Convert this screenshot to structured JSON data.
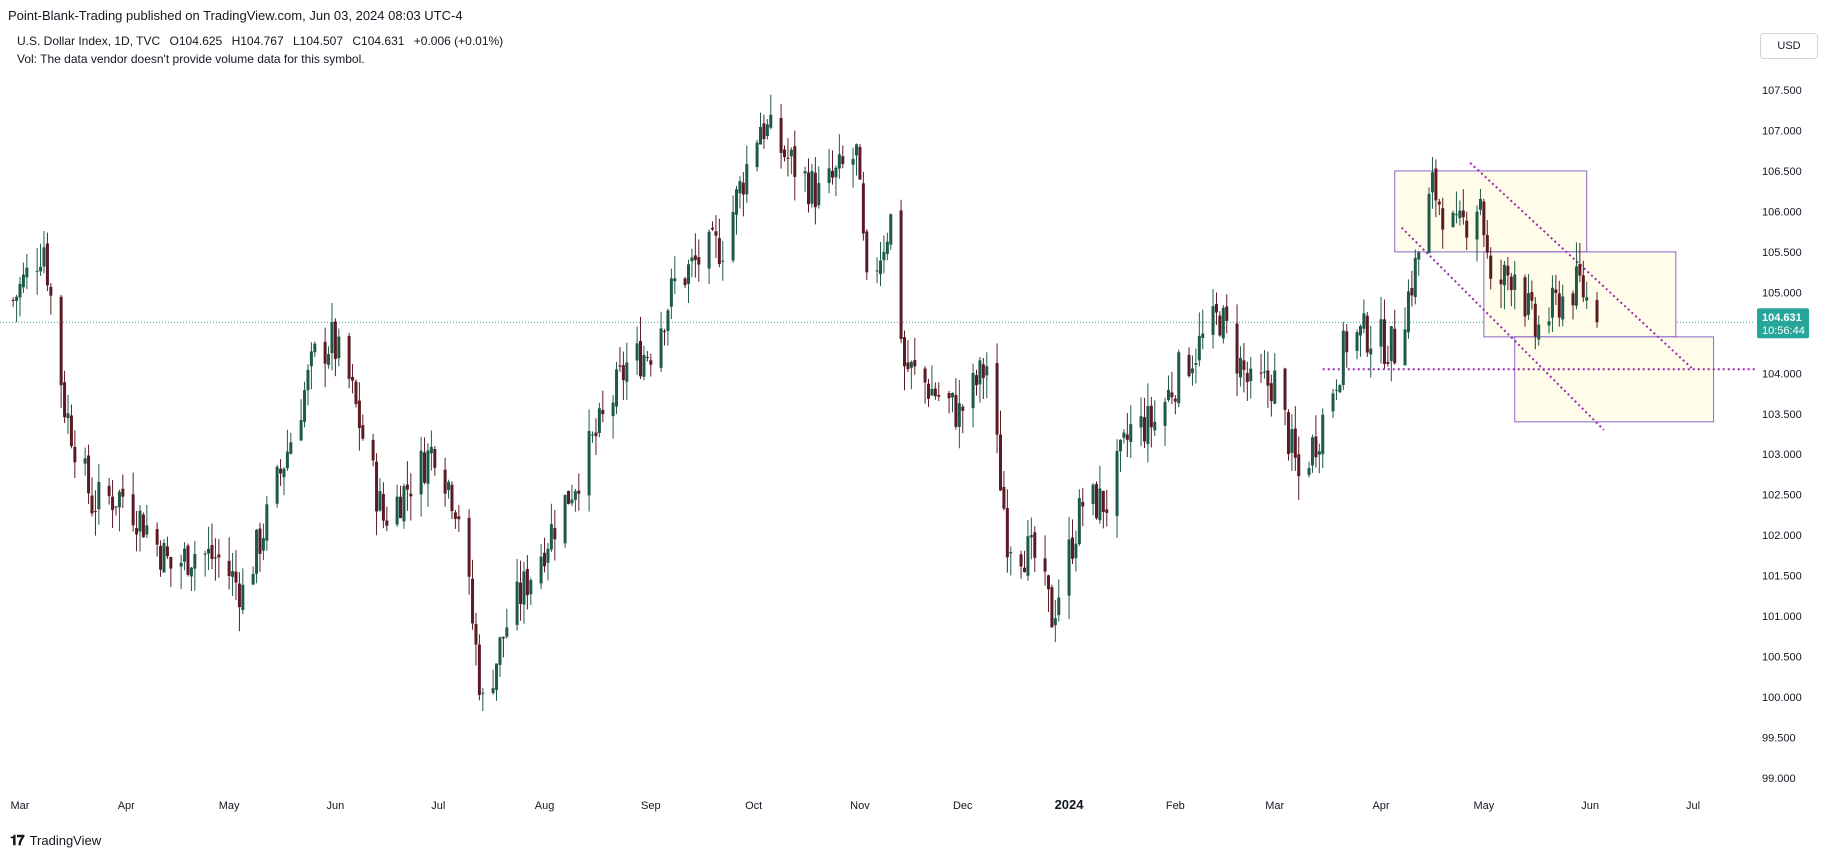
{
  "header": {
    "publisher": "Point-Blank-Trading published on TradingView.com, Jun 03, 2024 08:03 UTC-4"
  },
  "legend": {
    "title": "U.S. Dollar Index, 1D, TVC",
    "open": "O104.625",
    "high": "H104.767",
    "low": "L104.507",
    "close": "C104.631",
    "change": "+0.006 (+0.01%)",
    "vol_note": "Vol: The data vendor doesn't provide volume data for this symbol."
  },
  "currency_button": "USD",
  "price_tag": {
    "price": "104.631",
    "countdown": "10:56:44"
  },
  "footer": {
    "brand": "TradingView",
    "icon": "tradingview-logo-icon"
  },
  "colors": {
    "up": "#26a69a",
    "down": "#ef5350",
    "dark_up": "#1e5a4a",
    "dark_down": "#5b1a24",
    "drawing": "#9c27b0",
    "box_fill": "#fffde7",
    "box_stroke": "#7e57c2",
    "last_price_line": "#26a69a"
  },
  "chart_data": {
    "type": "candlestick",
    "title": "U.S. Dollar Index, 1D, TVC",
    "y_ticks": [
      "107.500",
      "107.000",
      "106.500",
      "106.000",
      "105.500",
      "105.000",
      "104.500",
      "104.000",
      "103.500",
      "103.000",
      "102.500",
      "102.000",
      "101.500",
      "101.000",
      "100.500",
      "100.000",
      "99.500",
      "99.000"
    ],
    "x_ticks": [
      "Mar",
      "Apr",
      "May",
      "Jun",
      "Jul",
      "Aug",
      "Sep",
      "Oct",
      "Nov",
      "Dec",
      "2024",
      "Feb",
      "Mar",
      "Apr",
      "May",
      "Jun",
      "Jul"
    ],
    "ylim": [
      98.5,
      108.3
    ],
    "x_range": [
      "2023-02-27",
      "2024-07-22"
    ],
    "last_price": 104.631,
    "closes": [
      [
        "2023-02-27",
        104.9
      ],
      [
        "2023-03-08",
        105.6
      ],
      [
        "2023-03-14",
        103.6
      ],
      [
        "2023-03-22",
        102.4
      ],
      [
        "2023-03-31",
        102.5
      ],
      [
        "2023-04-07",
        102.1
      ],
      [
        "2023-04-14",
        101.6
      ],
      [
        "2023-04-21",
        101.8
      ],
      [
        "2023-04-28",
        101.7
      ],
      [
        "2023-05-05",
        101.3
      ],
      [
        "2023-05-12",
        102.2
      ],
      [
        "2023-05-19",
        103.2
      ],
      [
        "2023-05-26",
        104.2
      ],
      [
        "2023-05-31",
        104.4
      ],
      [
        "2023-06-05",
        103.9
      ],
      [
        "2023-06-15",
        102.2
      ],
      [
        "2023-06-22",
        102.6
      ],
      [
        "2023-06-30",
        103.1
      ],
      [
        "2023-07-07",
        102.3
      ],
      [
        "2023-07-14",
        99.9
      ],
      [
        "2023-07-21",
        100.9
      ],
      [
        "2023-07-31",
        101.8
      ],
      [
        "2023-08-08",
        102.5
      ],
      [
        "2023-08-18",
        103.4
      ],
      [
        "2023-08-25",
        104.1
      ],
      [
        "2023-09-01",
        104.3
      ],
      [
        "2023-09-08",
        105.1
      ],
      [
        "2023-09-15",
        105.4
      ],
      [
        "2023-09-22",
        105.6
      ],
      [
        "2023-10-03",
        107.1
      ],
      [
        "2023-10-12",
        106.6
      ],
      [
        "2023-10-20",
        106.2
      ],
      [
        "2023-10-31",
        106.7
      ],
      [
        "2023-11-03",
        105.0
      ],
      [
        "2023-11-10",
        105.9
      ],
      [
        "2023-11-14",
        104.1
      ],
      [
        "2023-11-22",
        103.8
      ],
      [
        "2023-11-30",
        103.5
      ],
      [
        "2023-12-08",
        104.1
      ],
      [
        "2023-12-14",
        102.0
      ],
      [
        "2023-12-22",
        101.7
      ],
      [
        "2023-12-27",
        101.0
      ],
      [
        "2024-01-05",
        102.4
      ],
      [
        "2024-01-12",
        102.4
      ],
      [
        "2024-01-19",
        103.3
      ],
      [
        "2024-01-26",
        103.4
      ],
      [
        "2024-02-02",
        104.0
      ],
      [
        "2024-02-14",
        104.7
      ],
      [
        "2024-02-23",
        103.8
      ],
      [
        "2024-03-01",
        103.9
      ],
      [
        "2024-03-08",
        102.7
      ],
      [
        "2024-03-14",
        103.3
      ],
      [
        "2024-03-22",
        104.4
      ],
      [
        "2024-03-28",
        104.5
      ],
      [
        "2024-04-05",
        104.3
      ],
      [
        "2024-04-11",
        105.3
      ],
      [
        "2024-04-16",
        106.3
      ],
      [
        "2024-04-23",
        105.7
      ],
      [
        "2024-04-30",
        106.2
      ],
      [
        "2024-05-03",
        105.0
      ],
      [
        "2024-05-10",
        105.3
      ],
      [
        "2024-05-16",
        104.5
      ],
      [
        "2024-05-23",
        104.9
      ],
      [
        "2024-05-29",
        105.1
      ],
      [
        "2024-06-03",
        104.631
      ]
    ]
  }
}
